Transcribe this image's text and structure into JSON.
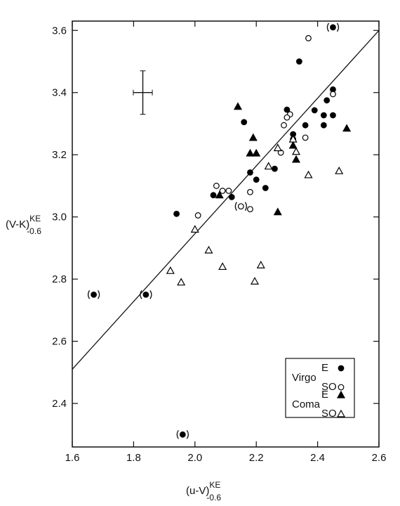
{
  "chart_data": {
    "type": "scatter",
    "x_label": {
      "main": "(u-V)",
      "sup": "KE",
      "sub": "-0.6"
    },
    "y_label": {
      "main": "(V-K)",
      "sup": "KE",
      "sub": "-0.6"
    },
    "xlim": [
      1.6,
      2.6
    ],
    "ylim": [
      2.26,
      3.63
    ],
    "xticks": [
      1.6,
      1.8,
      {
        "value": 2,
        "label": "2.0"
      },
      2.2,
      2.4,
      2.6
    ],
    "yticks": [
      2.4,
      2.6,
      2.8,
      {
        "value": 3,
        "label": "3.0"
      },
      3.2,
      3.4,
      3.6
    ],
    "fit_line": {
      "x": [
        1.6,
        2.6
      ],
      "y": [
        2.51,
        3.6
      ]
    },
    "error_bar": {
      "x": 1.83,
      "y": 3.4,
      "xerr": 0.031,
      "yerr": 0.07
    },
    "series": [
      {
        "group": "Virgo",
        "name": "E",
        "marker": "circle",
        "filled": true,
        "color": "#000000",
        "x": [
          2.45,
          2.34,
          2.3,
          2.39,
          2.45,
          2.43,
          2.42,
          2.45,
          2.42,
          2.36,
          2.32,
          2.32,
          2.16,
          2.18,
          2.2,
          2.26,
          2.23,
          2.06,
          2.12,
          1.94,
          1.84,
          1.67,
          1.96
        ],
        "y": [
          3.61,
          3.5,
          3.345,
          3.343,
          3.41,
          3.375,
          3.327,
          3.327,
          3.295,
          3.295,
          3.266,
          3.25,
          3.305,
          3.143,
          3.12,
          3.155,
          3.093,
          3.07,
          3.064,
          3.01,
          2.75,
          2.75,
          2.3
        ],
        "parenthesized": [
          true,
          false,
          false,
          false,
          false,
          false,
          false,
          false,
          false,
          false,
          false,
          false,
          false,
          false,
          false,
          false,
          false,
          false,
          false,
          false,
          true,
          true,
          true
        ]
      },
      {
        "group": "Virgo",
        "name": "SO",
        "marker": "circle",
        "filled": false,
        "color": "#000000",
        "x": [
          2.37,
          2.45,
          2.31,
          2.3,
          2.29,
          2.36,
          2.28,
          2.07,
          2.09,
          2.11,
          2.18,
          2.18,
          2.15,
          2.01
        ],
        "y": [
          3.575,
          3.395,
          3.33,
          3.32,
          3.295,
          3.255,
          3.207,
          3.1,
          3.084,
          3.084,
          3.08,
          3.025,
          3.034,
          3.005
        ],
        "parenthesized": [
          false,
          false,
          false,
          false,
          false,
          false,
          false,
          false,
          false,
          false,
          false,
          false,
          true,
          false
        ]
      },
      {
        "group": "Coma",
        "name": "E",
        "marker": "triangle",
        "filled": true,
        "color": "#000000",
        "x": [
          2.08,
          2.14,
          2.19,
          2.18,
          2.2,
          2.32,
          2.33,
          2.27,
          2.495
        ],
        "y": [
          3.07,
          3.355,
          3.255,
          3.205,
          3.205,
          3.23,
          3.185,
          3.016,
          3.285
        ],
        "parenthesized": [
          false,
          false,
          false,
          false,
          false,
          false,
          false,
          false,
          false
        ]
      },
      {
        "group": "Coma",
        "name": "SO",
        "marker": "triangle",
        "filled": false,
        "color": "#000000",
        "x": [
          2.24,
          2.27,
          2.32,
          2.33,
          2.37,
          2.47,
          2.0,
          2.045,
          2.09,
          2.215,
          2.195,
          1.92,
          1.955
        ],
        "y": [
          3.163,
          3.222,
          3.25,
          3.21,
          3.135,
          3.148,
          2.96,
          2.893,
          2.84,
          2.845,
          2.793,
          2.827,
          2.79
        ],
        "parenthesized": [
          false,
          false,
          false,
          false,
          false,
          false,
          false,
          false,
          false,
          false,
          false,
          false,
          false
        ]
      }
    ]
  }
}
